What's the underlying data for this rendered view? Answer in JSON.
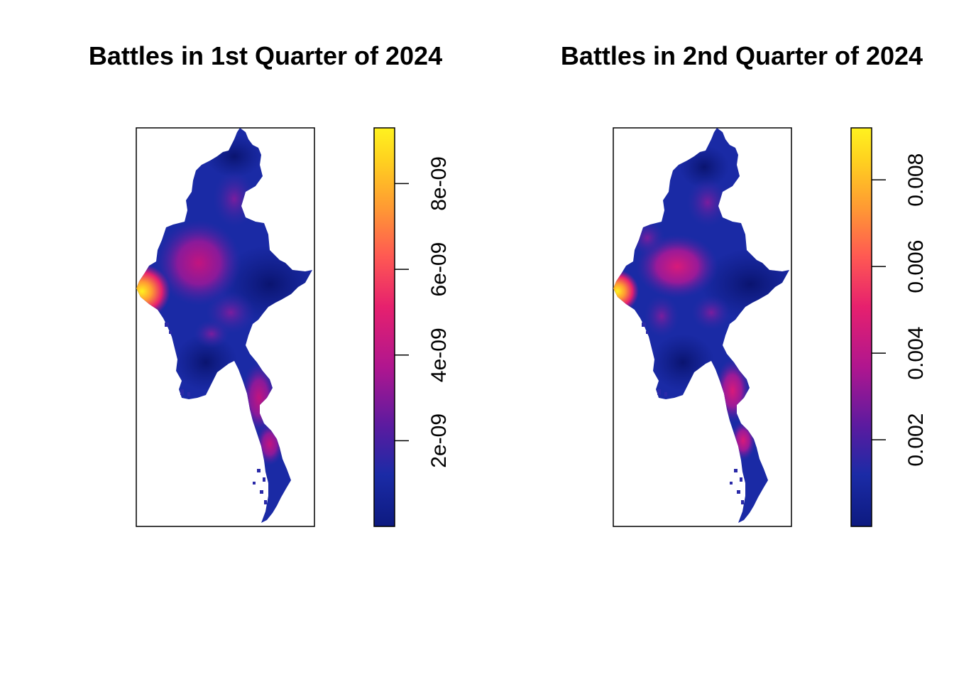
{
  "panels": [
    {
      "title": "Battles in 1st Quarter of 2024",
      "legend": {
        "ticks": [
          {
            "value": 2e-09,
            "label": "2e-09"
          },
          {
            "value": 4e-09,
            "label": "4e-09"
          },
          {
            "value": 6e-09,
            "label": "6e-09"
          },
          {
            "value": 8e-09,
            "label": "8e-09"
          }
        ],
        "min": 0,
        "max": 9.3e-09
      }
    },
    {
      "title": "Battles in 2nd Quarter of 2024",
      "legend": {
        "ticks": [
          {
            "value": 0.002,
            "label": "0.002"
          },
          {
            "value": 0.004,
            "label": "0.004"
          },
          {
            "value": 0.006,
            "label": "0.006"
          },
          {
            "value": 0.008,
            "label": "0.008"
          }
        ],
        "min": 0,
        "max": 0.0092
      }
    }
  ],
  "colors": {
    "ramp": [
      "#0d1a80",
      "#1b2ba6",
      "#5a1ba0",
      "#b0168f",
      "#e6206e",
      "#ff5a52",
      "#ff9a33",
      "#ffd21f",
      "#fff21f"
    ],
    "frame": "#000000",
    "background": "#ffffff"
  }
}
